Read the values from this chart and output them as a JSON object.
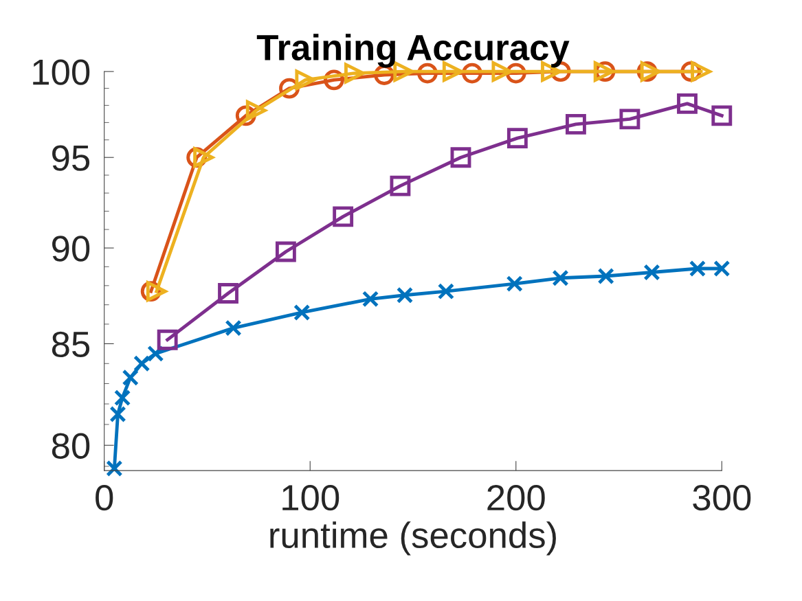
{
  "chart_data": {
    "type": "line",
    "title": "Training Accuracy",
    "xlabel": "runtime (seconds)",
    "xlim": [
      0,
      300
    ],
    "xticks": [
      0,
      100,
      200,
      300
    ],
    "ylim": [
      78.8,
      100
    ],
    "yticks": [
      80,
      85,
      90,
      95,
      100
    ],
    "log": "y",
    "grid": false,
    "legend": false,
    "series": [
      {
        "color": "#0072bd",
        "marker": "cross",
        "x": [
          4.9,
          6.6,
          8.8,
          12.7,
          18.2,
          24.9,
          62.7,
          96,
          129.3,
          146,
          166,
          199.3,
          221.6,
          243.7,
          266,
          288.2,
          300
        ],
        "values": [
          78.9,
          81.5,
          82.3,
          83.3,
          84.0,
          84.5,
          85.8,
          86.6,
          87.3,
          87.5,
          87.7,
          88.1,
          88.4,
          88.5,
          88.7,
          88.9,
          88.9
        ]
      },
      {
        "color": "#d95319",
        "marker": "circle",
        "x": [
          22.7,
          44.9,
          68.8,
          89.9,
          111.6,
          136,
          157,
          178.7,
          200,
          221.7,
          243.3,
          263.7,
          285
        ],
        "values": [
          87.7,
          95.0,
          97.4,
          99.0,
          99.5,
          99.8,
          99.9,
          99.9,
          99.9,
          100,
          100,
          100,
          100
        ]
      },
      {
        "color": "#edb120",
        "marker": "triangle",
        "x": [
          25.4,
          48.2,
          73.8,
          97.7,
          121.6,
          145.4,
          169.3,
          193.2,
          217.1,
          242.7,
          265.4,
          289.9
        ],
        "values": [
          87.7,
          95.0,
          97.7,
          99.5,
          99.9,
          100,
          100,
          100,
          100,
          100,
          100,
          100
        ]
      },
      {
        "color": "#7e2f8e",
        "marker": "square",
        "x": [
          30.7,
          60.2,
          88.2,
          116,
          143.8,
          173.2,
          200.7,
          229.1,
          255.3,
          283.2,
          300
        ],
        "values": [
          85.2,
          87.6,
          89.8,
          91.7,
          93.4,
          95.0,
          96.1,
          96.9,
          97.2,
          98.1,
          97.4
        ]
      }
    ]
  }
}
